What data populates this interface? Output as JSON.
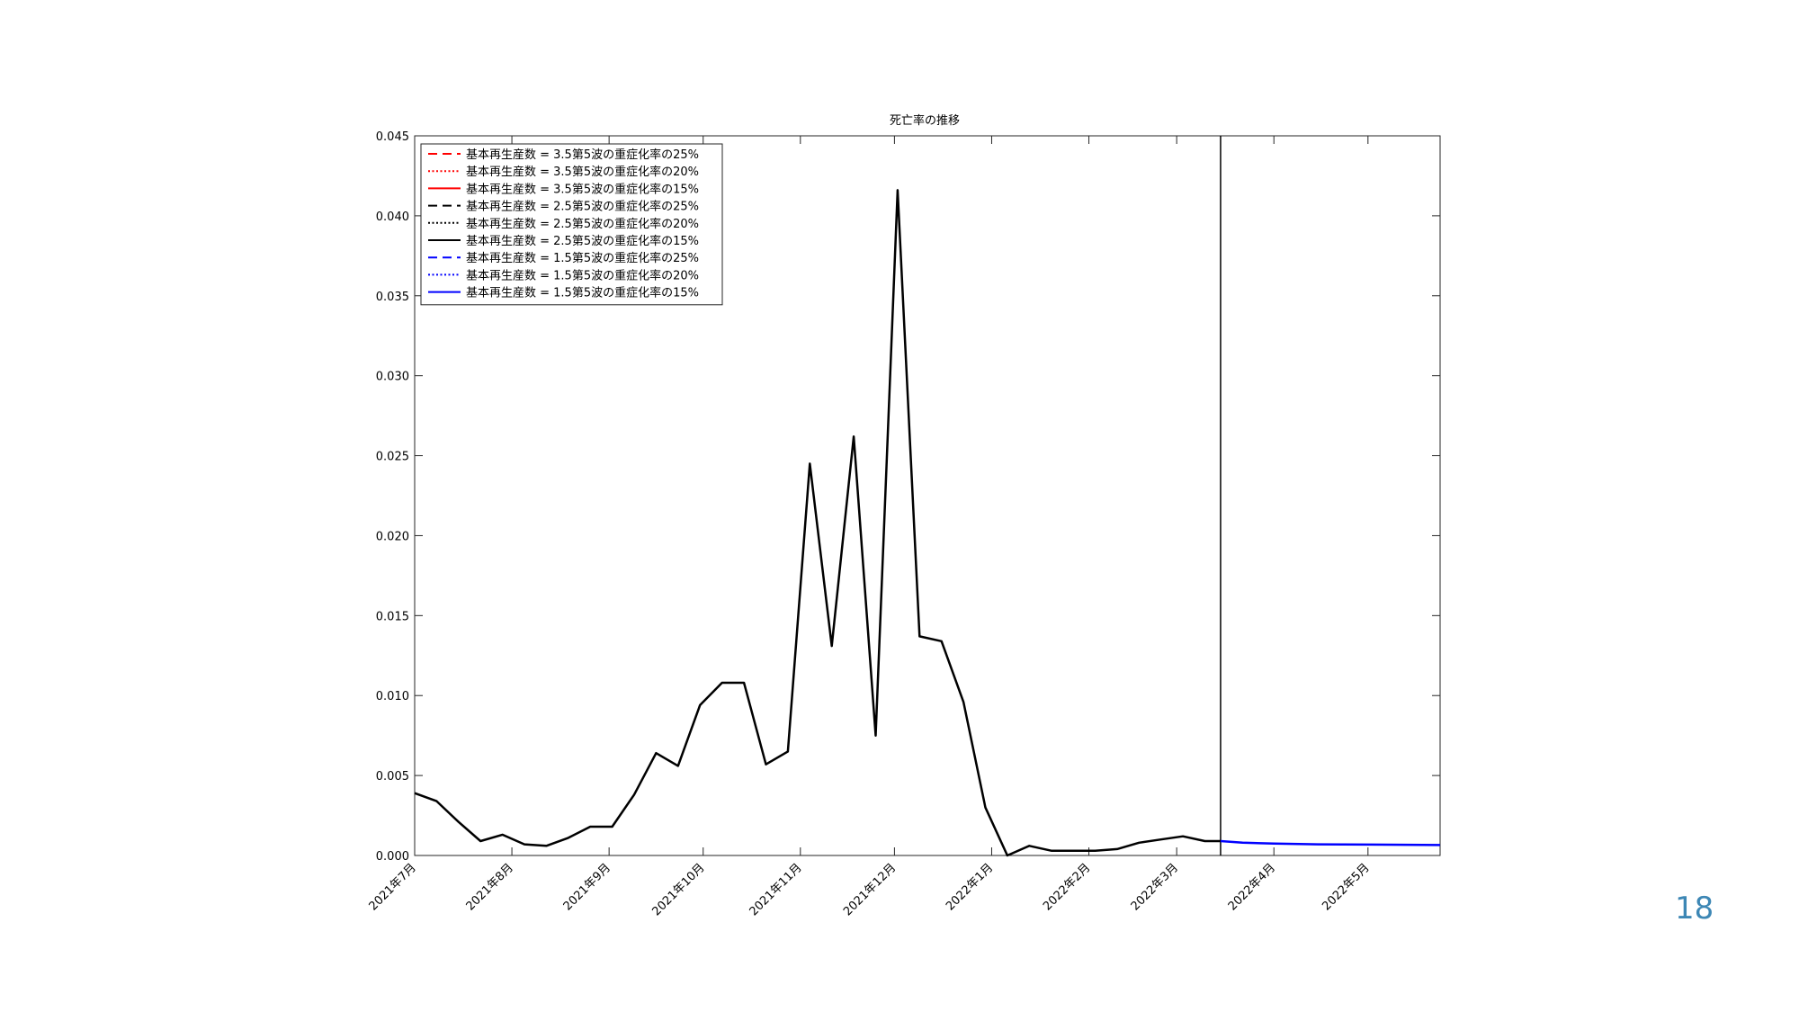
{
  "page_number": "18",
  "chart_data": {
    "type": "line",
    "title": "死亡率の推移",
    "xlabel": "",
    "ylabel": "",
    "x_range": [
      "2021-07-01",
      "2022-05-24"
    ],
    "ylim": [
      0,
      0.045
    ],
    "y_ticks": [
      "0.000",
      "0.005",
      "0.010",
      "0.015",
      "0.020",
      "0.025",
      "0.030",
      "0.035",
      "0.040",
      "0.045"
    ],
    "x_ticks": [
      {
        "label": "2021年7月",
        "date": "2021-07-01"
      },
      {
        "label": "2021年8月",
        "date": "2021-08-01"
      },
      {
        "label": "2021年9月",
        "date": "2021-09-01"
      },
      {
        "label": "2021年10月",
        "date": "2021-10-01"
      },
      {
        "label": "2021年11月",
        "date": "2021-11-01"
      },
      {
        "label": "2021年12月",
        "date": "2021-12-01"
      },
      {
        "label": "2022年1月",
        "date": "2022-01-01"
      },
      {
        "label": "2022年2月",
        "date": "2022-02-01"
      },
      {
        "label": "2022年3月",
        "date": "2022-03-01"
      },
      {
        "label": "2022年4月",
        "date": "2022-04-01"
      },
      {
        "label": "2022年5月",
        "date": "2022-05-01"
      }
    ],
    "vertical_line_date": "2022-03-15",
    "grid": false,
    "legend_position": "top-left",
    "legend": [
      {
        "label": "基本再生産数 = 3.5第5波の重症化率の25%",
        "color": "#ff0000",
        "dash": "dashed"
      },
      {
        "label": "基本再生産数 = 3.5第5波の重症化率の20%",
        "color": "#ff0000",
        "dash": "dotted"
      },
      {
        "label": "基本再生産数 = 3.5第5波の重症化率の15%",
        "color": "#ff0000",
        "dash": "solid"
      },
      {
        "label": "基本再生産数 = 2.5第5波の重症化率の25%",
        "color": "#000000",
        "dash": "dashed"
      },
      {
        "label": "基本再生産数 = 2.5第5波の重症化率の20%",
        "color": "#000000",
        "dash": "dotted"
      },
      {
        "label": "基本再生産数 = 2.5第5波の重症化率の15%",
        "color": "#000000",
        "dash": "solid"
      },
      {
        "label": "基本再生産数 = 1.5第5波の重症化率の25%",
        "color": "#0000ff",
        "dash": "dashed"
      },
      {
        "label": "基本再生産数 = 1.5第5波の重症化率の20%",
        "color": "#0000ff",
        "dash": "dotted"
      },
      {
        "label": "基本再生産数 = 1.5第5波の重症化率の15%",
        "color": "#0000ff",
        "dash": "solid"
      }
    ],
    "series": [
      {
        "color": "#000000",
        "points": [
          [
            "2021-07-01",
            0.0039
          ],
          [
            "2021-07-08",
            0.0034
          ],
          [
            "2021-07-15",
            0.0021
          ],
          [
            "2021-07-22",
            0.0009
          ],
          [
            "2021-07-29",
            0.0013
          ],
          [
            "2021-08-05",
            0.0007
          ],
          [
            "2021-08-12",
            0.0006
          ],
          [
            "2021-08-19",
            0.0011
          ],
          [
            "2021-08-26",
            0.0018
          ],
          [
            "2021-09-02",
            0.0018
          ],
          [
            "2021-09-09",
            0.0038
          ],
          [
            "2021-09-16",
            0.0064
          ],
          [
            "2021-09-23",
            0.0056
          ],
          [
            "2021-09-30",
            0.0094
          ],
          [
            "2021-10-07",
            0.0108
          ],
          [
            "2021-10-14",
            0.0108
          ],
          [
            "2021-10-21",
            0.0057
          ],
          [
            "2021-10-28",
            0.0065
          ],
          [
            "2021-11-04",
            0.0245
          ],
          [
            "2021-11-11",
            0.0131
          ],
          [
            "2021-11-18",
            0.0262
          ],
          [
            "2021-11-25",
            0.0075
          ],
          [
            "2021-12-02",
            0.0416
          ],
          [
            "2021-12-09",
            0.0137
          ],
          [
            "2021-12-16",
            0.0134
          ],
          [
            "2021-12-23",
            0.0096
          ],
          [
            "2021-12-30",
            0.003
          ],
          [
            "2022-01-06",
            0.0
          ],
          [
            "2022-01-13",
            0.0006
          ],
          [
            "2022-01-20",
            0.0003
          ],
          [
            "2022-01-27",
            0.0003
          ],
          [
            "2022-02-03",
            0.0003
          ],
          [
            "2022-02-10",
            0.0004
          ],
          [
            "2022-02-17",
            0.0008
          ],
          [
            "2022-02-24",
            0.001
          ],
          [
            "2022-03-03",
            0.0012
          ],
          [
            "2022-03-10",
            0.0009
          ],
          [
            "2022-03-15",
            0.0009
          ]
        ]
      },
      {
        "color": "#0000ff",
        "points": [
          [
            "2022-03-15",
            0.0009
          ],
          [
            "2022-03-22",
            0.0008
          ],
          [
            "2022-04-01",
            0.00075
          ],
          [
            "2022-04-15",
            0.0007
          ],
          [
            "2022-05-01",
            0.00068
          ],
          [
            "2022-05-24",
            0.00065
          ]
        ]
      }
    ]
  }
}
